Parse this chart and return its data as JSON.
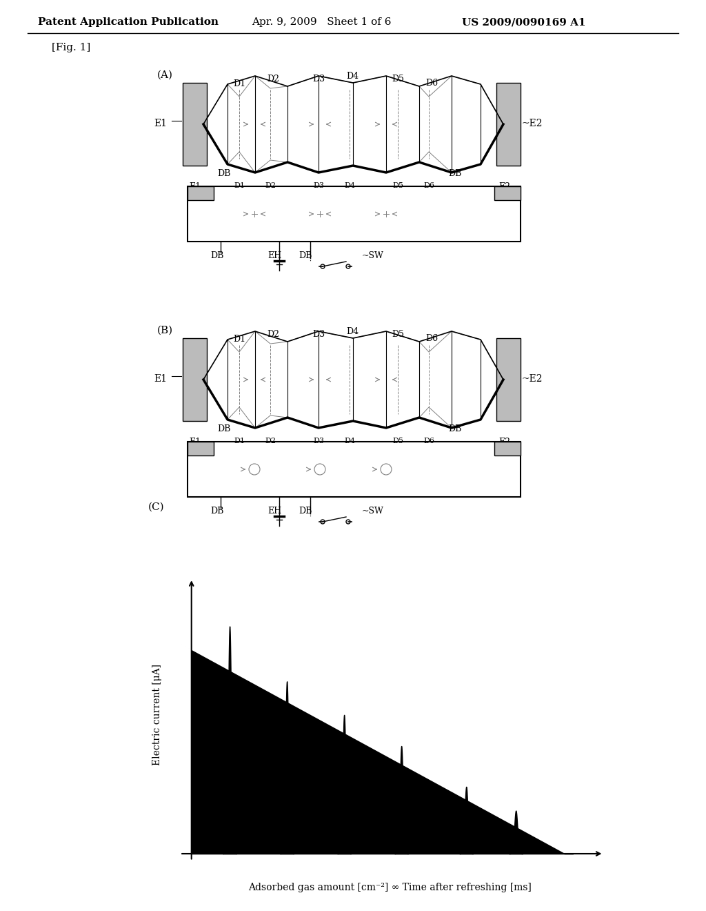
{
  "title_left": "Patent Application Publication",
  "title_mid": "Apr. 9, 2009   Sheet 1 of 6",
  "title_right": "US 2009/0090169 A1",
  "fig_label": "[Fig. 1]",
  "bg_color": "#ffffff",
  "text_color": "#000000",
  "gray_color": "#999999",
  "electrode_color": "#bbbbbb",
  "dark_color": "#333333",
  "spike_times": [
    1.0,
    2.5,
    4.0,
    5.5,
    7.2,
    8.5
  ],
  "spike_heights": [
    9.5,
    7.2,
    5.8,
    4.5,
    2.8,
    1.8
  ],
  "ylabel_graph": "Electric current [μA]",
  "xlabel_graph": "Adsorbed gas amount [cm⁻²] ∞ Time after refreshing [ms]"
}
